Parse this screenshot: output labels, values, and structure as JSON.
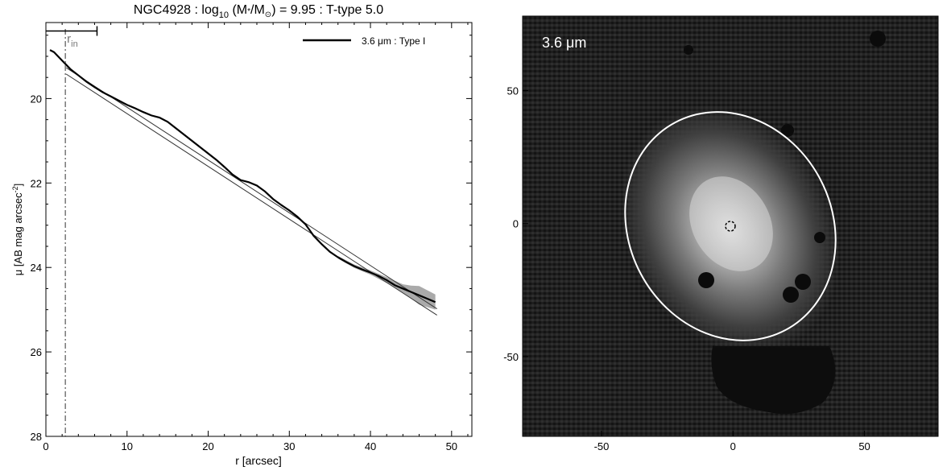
{
  "title": {
    "prefix": "NGC4928 : log",
    "sub10": "10",
    "mid": " (M",
    "star": "*",
    "slash": "/M",
    "sun": "⊙",
    "suffix": ") = 9.95 : T-type 5.0"
  },
  "chart_data": [
    {
      "type": "line",
      "xlabel": "r [arcsec]",
      "ylabel": "μ [AB mag arcsec",
      "ylabel_sup": "-2",
      "ylabel_close": "]",
      "xlim": [
        0,
        52.5
      ],
      "ylim": [
        28,
        18.2
      ],
      "y_inverted": true,
      "x_ticks": [
        0,
        10,
        20,
        30,
        40,
        50
      ],
      "y_ticks": [
        20,
        22,
        24,
        26,
        28
      ],
      "legend": {
        "label": "3.6 μm : Type I",
        "position": "top-right"
      },
      "rin_label": "r",
      "rin_sub": "in",
      "r_in": 2.4,
      "r_in_bar": [
        0,
        6.3
      ],
      "r_in_bar_y": 18.4,
      "series": [
        {
          "name": "3.6 μm : Type I",
          "x": [
            0.5,
            1.0,
            1.5,
            2.0,
            2.5,
            3,
            4,
            5,
            6,
            7,
            8,
            9,
            10,
            11,
            12,
            13,
            14,
            15,
            16,
            17,
            18,
            19,
            20,
            21,
            22,
            23,
            24,
            25,
            26,
            27,
            28,
            29,
            30,
            31,
            32,
            33,
            34,
            35,
            36,
            37,
            38,
            39,
            40,
            41,
            42,
            43,
            44,
            45,
            46,
            47,
            48
          ],
          "y": [
            18.85,
            18.9,
            19.0,
            19.1,
            19.2,
            19.3,
            19.45,
            19.6,
            19.73,
            19.85,
            19.95,
            20.05,
            20.15,
            20.23,
            20.32,
            20.4,
            20.45,
            20.55,
            20.7,
            20.85,
            21.0,
            21.15,
            21.3,
            21.45,
            21.62,
            21.8,
            21.93,
            21.98,
            22.06,
            22.2,
            22.38,
            22.52,
            22.65,
            22.8,
            22.98,
            23.25,
            23.45,
            23.63,
            23.76,
            23.87,
            23.97,
            24.05,
            24.12,
            24.2,
            24.3,
            24.42,
            24.5,
            24.58,
            24.66,
            24.74,
            24.82
          ]
        }
      ],
      "uncertainty_band": {
        "x": [
          36,
          38,
          40,
          42,
          44,
          45,
          46,
          47,
          48
        ],
        "half_width": [
          0.03,
          0.04,
          0.05,
          0.07,
          0.1,
          0.15,
          0.22,
          0.2,
          0.18
        ]
      },
      "fit_lines": [
        {
          "x": [
            2.5,
            48.2
          ],
          "y": [
            19.42,
            25.13
          ]
        },
        {
          "x": [
            2.5,
            48.2
          ],
          "y": [
            19.27,
            24.98
          ]
        }
      ]
    },
    {
      "type": "heatmap",
      "label": "3.6 μm",
      "xlim": [
        -80,
        78
      ],
      "ylim": [
        -80,
        78
      ],
      "x_ticks": [
        -50,
        0,
        50
      ],
      "y_ticks": [
        -50,
        0,
        50
      ],
      "ellipse": {
        "center": [
          10,
          5
        ],
        "semi_major": 55,
        "semi_minor": 37,
        "major_axis_angle_deg": 115
      }
    }
  ],
  "colors": {
    "axis": "#000000",
    "band": "#aaaaaa",
    "rin": "#777777",
    "image_bg": "#1a1a1a",
    "ellipse": "#ffffff"
  }
}
